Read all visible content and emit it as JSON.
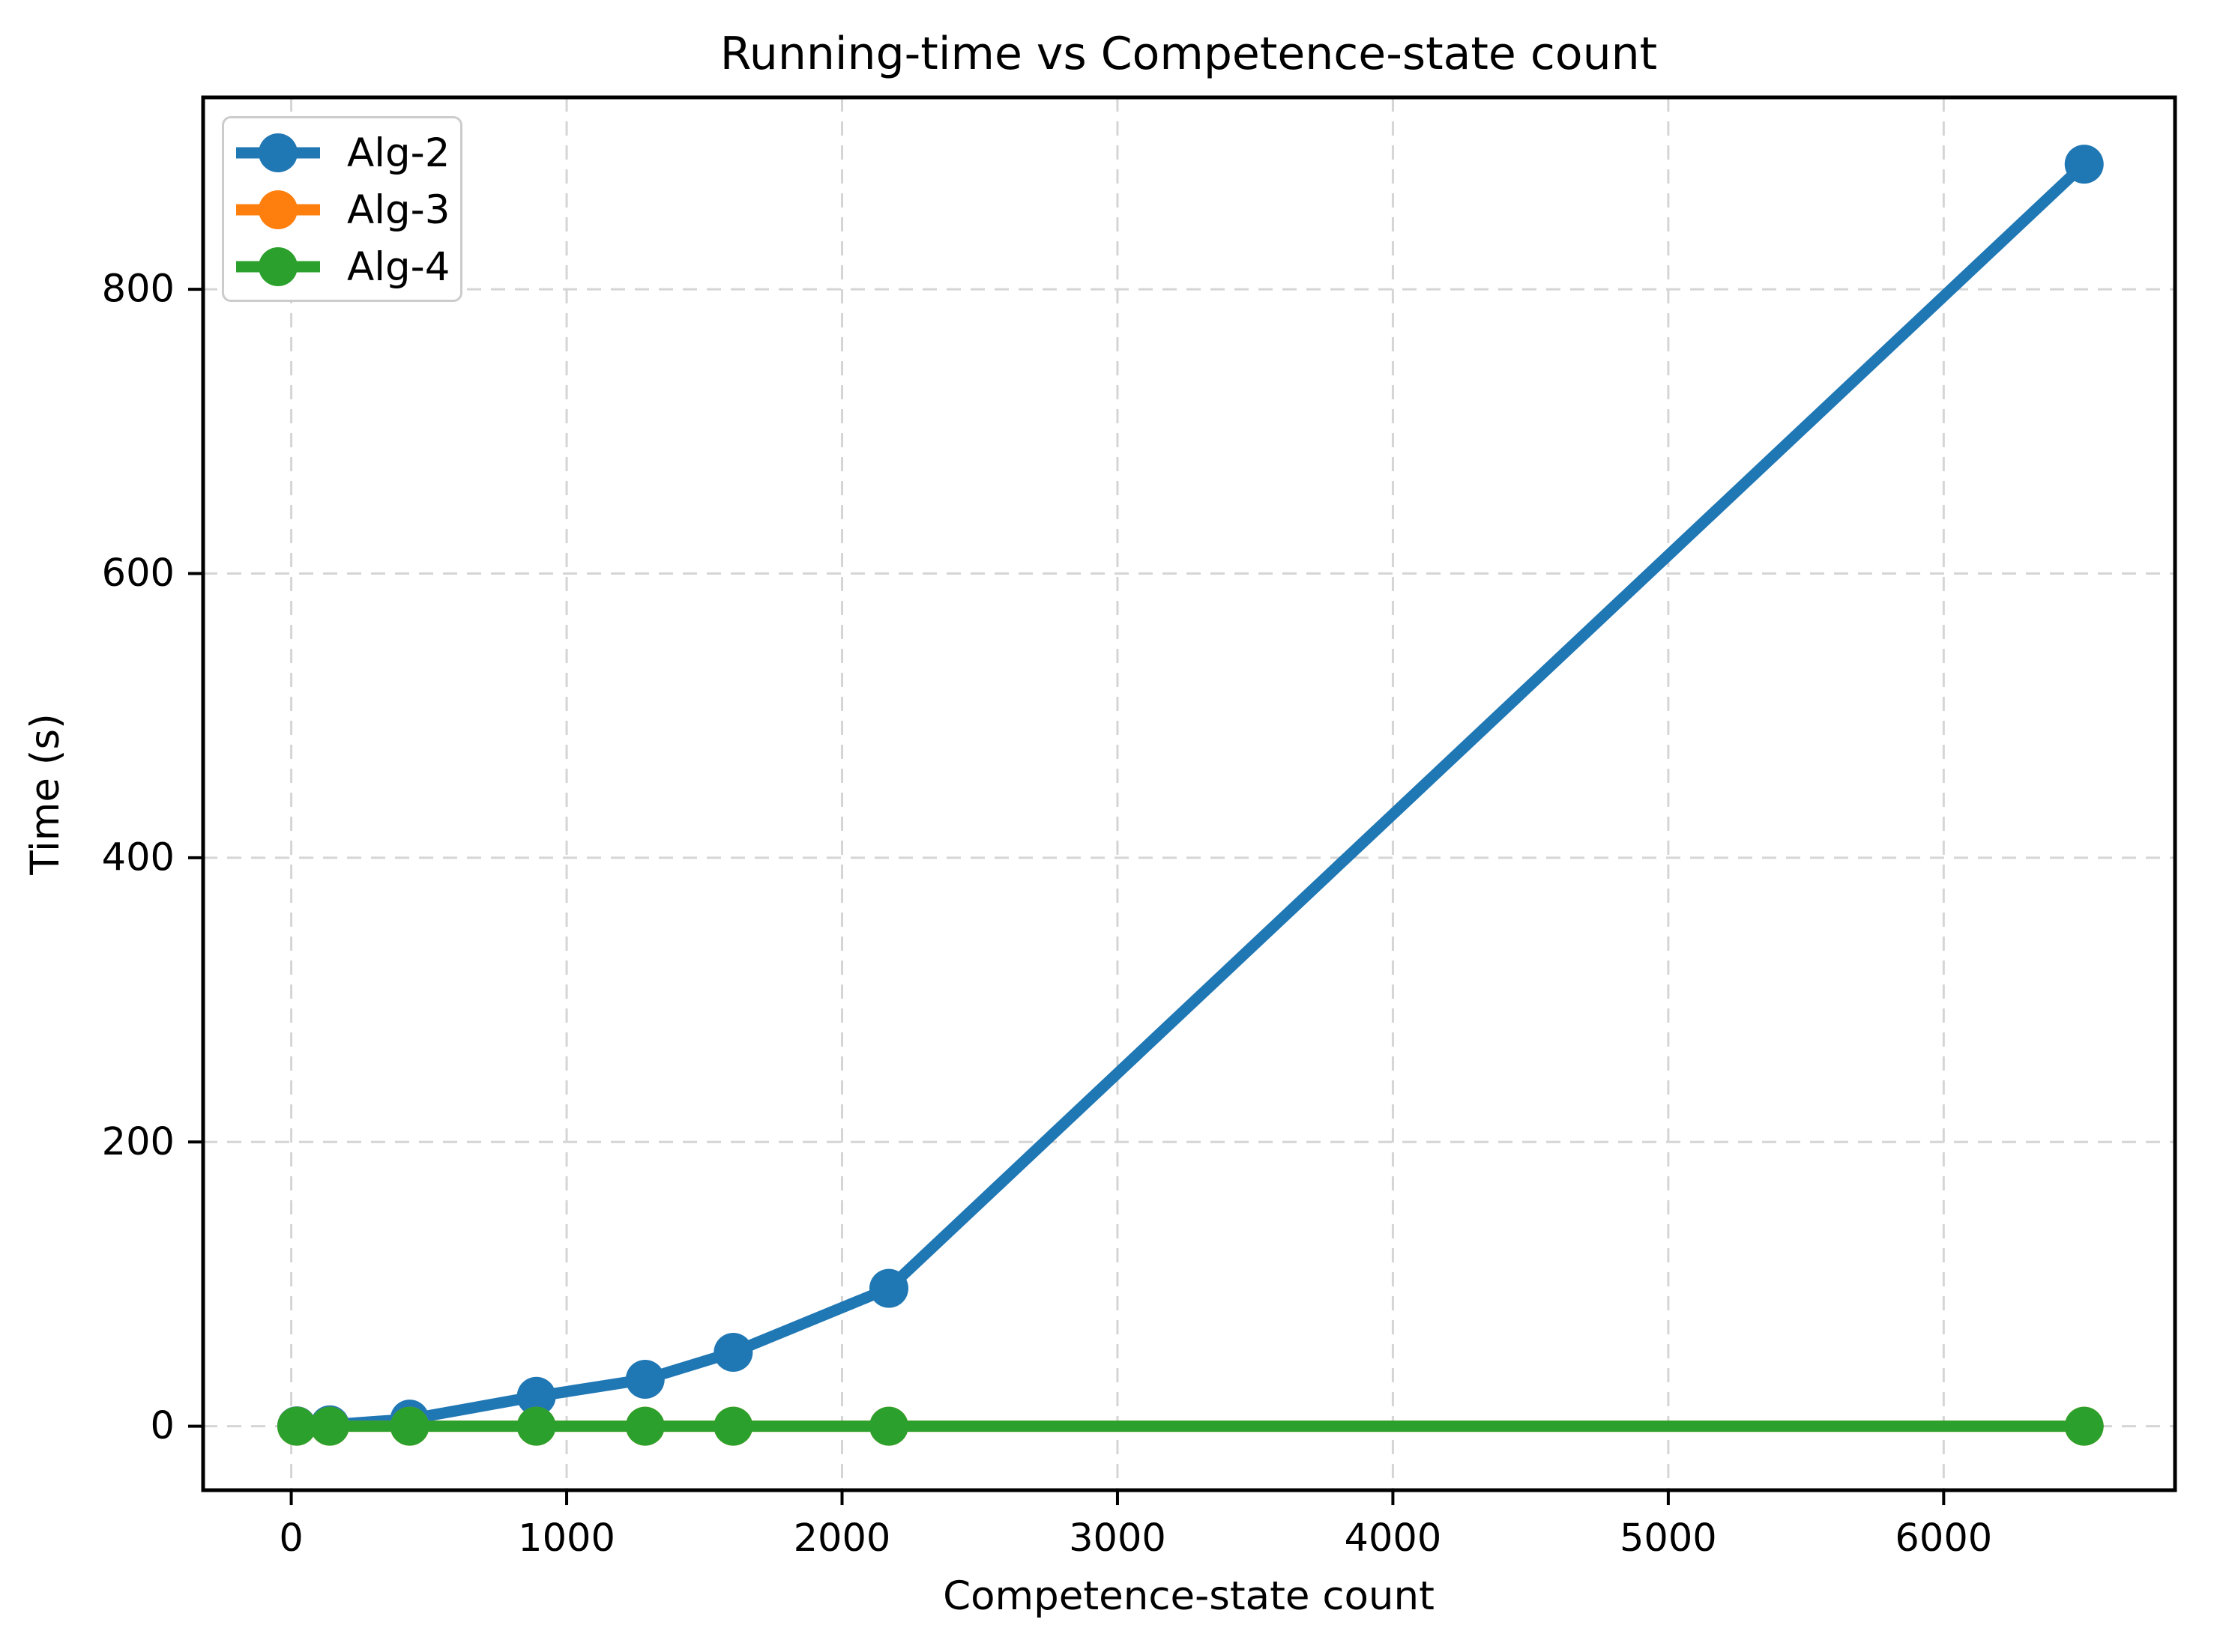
{
  "chart_data": {
    "type": "line",
    "title": "Running-time vs Competence-state count",
    "xlabel": "Competence-state count",
    "ylabel": "Time (s)",
    "x_ticks": [
      0,
      1000,
      2000,
      3000,
      4000,
      5000,
      6000
    ],
    "y_ticks": [
      0,
      200,
      400,
      600,
      800
    ],
    "xlim": [
      -320,
      6840
    ],
    "ylim": [
      -45,
      935
    ],
    "grid": "dashed",
    "grid_color": "#d5d5d5",
    "legend_position": "upper-left",
    "x": [
      20,
      140,
      430,
      890,
      1285,
      1605,
      2170,
      6510
    ],
    "series": [
      {
        "name": "Alg-2",
        "color": "#1f77b4",
        "values": [
          0.3,
          1,
          5,
          21,
          33,
          52,
          97,
          888
        ]
      },
      {
        "name": "Alg-3",
        "color": "#ff7f0e",
        "values": [
          0,
          0,
          0,
          0,
          0,
          0,
          0,
          0
        ]
      },
      {
        "name": "Alg-4",
        "color": "#2ca02c",
        "values": [
          0,
          0,
          0,
          0,
          0,
          0,
          0,
          0
        ]
      }
    ]
  }
}
